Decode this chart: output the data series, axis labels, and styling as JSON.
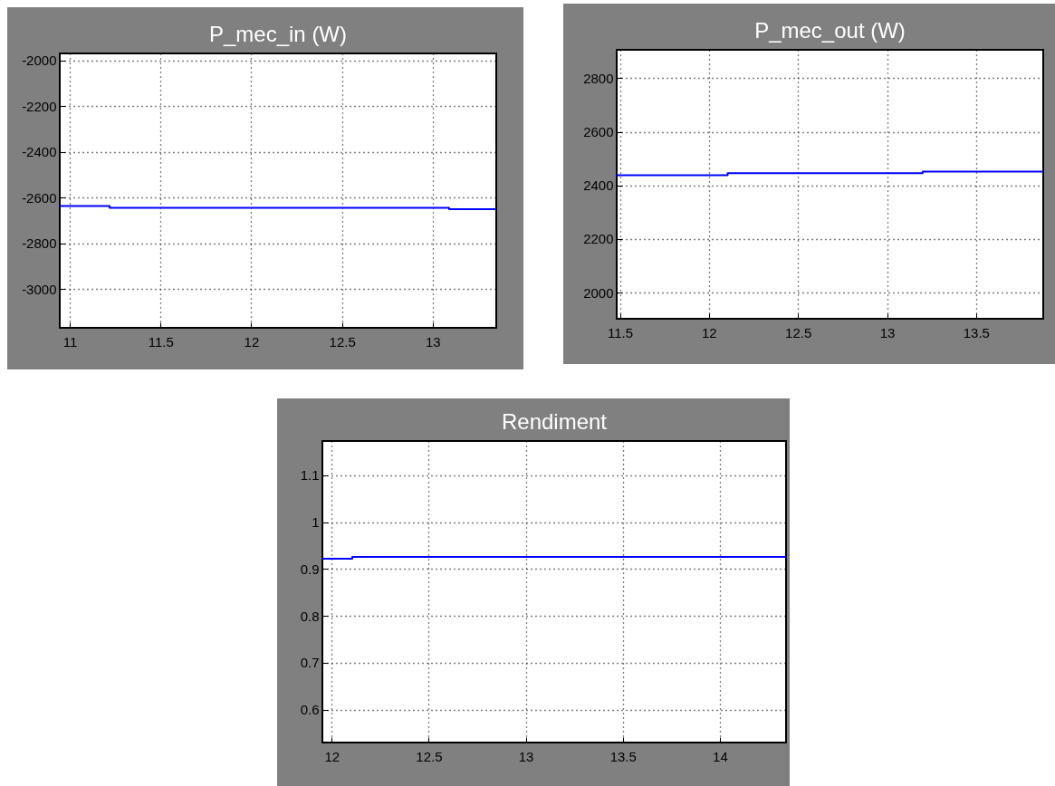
{
  "chart_data": [
    {
      "type": "step",
      "title": "P_mec_in (W)",
      "x": [
        10.945,
        11.22,
        13.09,
        13.35
      ],
      "values": [
        -2637,
        -2645,
        -2651,
        -2651
      ],
      "color": "#0000ff",
      "xlim": [
        10.945,
        13.35
      ],
      "xticks": [
        11,
        11.5,
        12,
        12.5,
        13
      ],
      "ylim": [
        -3170,
        -1970
      ],
      "yticks": [
        -3000,
        -2800,
        -2600,
        -2400,
        -2200,
        -2000
      ],
      "grid": true,
      "line_style": "solid"
    },
    {
      "type": "step",
      "title": "P_mec_out  (W)",
      "x": [
        11.482,
        12.105,
        13.2,
        13.877
      ],
      "values": [
        2438,
        2445,
        2451,
        2451
      ],
      "color": "#0000ff",
      "xlim": [
        11.482,
        13.877
      ],
      "xticks": [
        11.5,
        12,
        12.5,
        13,
        13.5
      ],
      "ylim": [
        1902,
        2906
      ],
      "yticks": [
        2000,
        2200,
        2400,
        2600,
        2800
      ],
      "grid": true,
      "line_style": "solid"
    },
    {
      "type": "step",
      "title": "Rendiment",
      "x": [
        11.952,
        12.106,
        14.341
      ],
      "values": [
        0.922,
        0.926,
        0.926
      ],
      "color": "#0000ff",
      "xlim": [
        11.952,
        14.341
      ],
      "xticks": [
        12,
        12.5,
        13,
        13.5,
        14
      ],
      "ylim": [
        0.53,
        1.173
      ],
      "yticks": [
        0.6,
        0.7,
        0.8,
        0.9,
        1,
        1.1
      ],
      "grid": true,
      "line_style": "solid"
    }
  ]
}
